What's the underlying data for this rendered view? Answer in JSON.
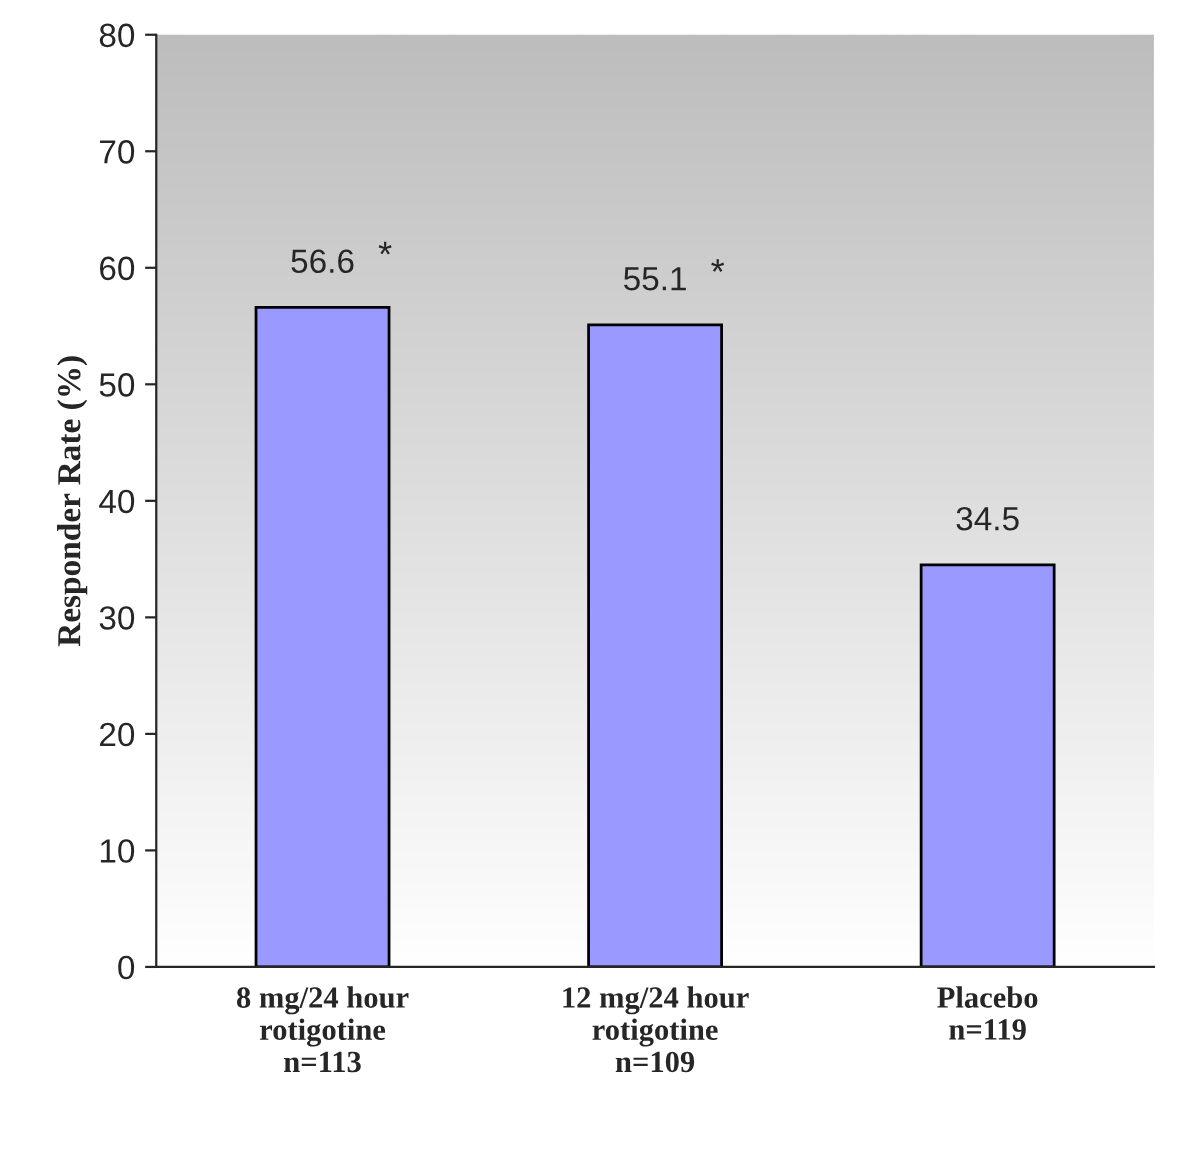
{
  "chart_data": {
    "type": "bar",
    "categories": [
      "8 mg/24 hour\nrotigotine\nn=113",
      "12 mg/24 hour\nrotigotine\nn=109",
      "Placebo\nn=119"
    ],
    "values": [
      56.6,
      55.1,
      34.5
    ],
    "color": "#9999ff",
    "ylabel": "Responder Rate (%)",
    "ylim": [
      0,
      80
    ],
    "yticks": [
      0,
      10,
      20,
      30,
      40,
      50,
      60,
      70,
      80
    ],
    "data_labels": true,
    "grid": false,
    "legend": false,
    "annotations": [
      {
        "text": "*",
        "x": "8 mg/24 hour\nrotigotine\nn=113",
        "y": 56.6
      },
      {
        "text": "*",
        "x": "12 mg/24 hour\nrotigotine\nn=109",
        "y": 55.1
      }
    ]
  }
}
